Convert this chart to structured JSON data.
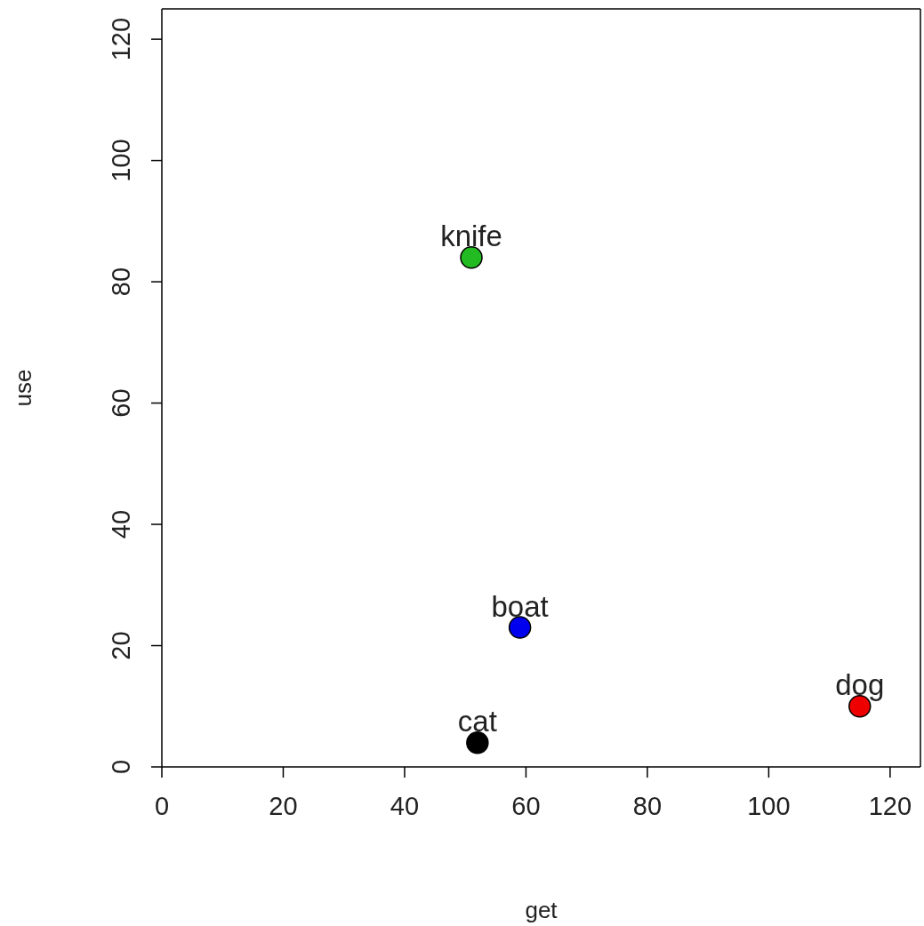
{
  "chart_data": {
    "type": "scatter",
    "xlabel": "get",
    "ylabel": "use",
    "series": [
      {
        "name": "knife",
        "color": "#22bb22",
        "x": [
          51
        ],
        "values": [
          84
        ]
      },
      {
        "name": "boat",
        "color": "#0000ee",
        "x": [
          59
        ],
        "values": [
          23
        ]
      },
      {
        "name": "cat",
        "color": "#000000",
        "x": [
          52
        ],
        "values": [
          4
        ]
      },
      {
        "name": "dog",
        "color": "#ee0000",
        "x": [
          115
        ],
        "values": [
          10
        ]
      }
    ],
    "xlim": [
      0,
      125
    ],
    "ylim": [
      0,
      125
    ],
    "xticks": [
      0,
      20,
      40,
      60,
      80,
      100,
      120
    ],
    "yticks": [
      0,
      20,
      40,
      60,
      80,
      100,
      120
    ],
    "marker": "circle",
    "legend": false,
    "grid": false
  }
}
